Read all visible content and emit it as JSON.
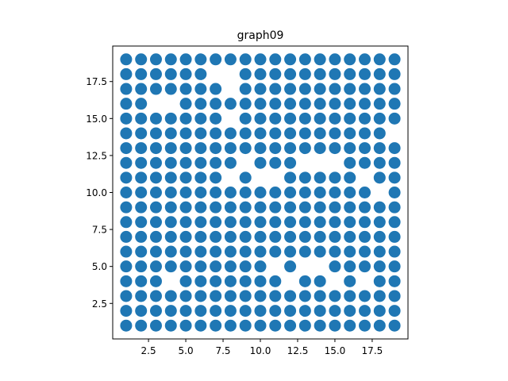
{
  "chart_data": {
    "type": "scatter",
    "title": "graph09",
    "xlabel": "",
    "ylabel": "",
    "xlim": [
      0.1,
      19.9
    ],
    "ylim": [
      0.1,
      19.9
    ],
    "xticks": [
      2.5,
      5.0,
      7.5,
      10.0,
      12.5,
      15.0,
      17.5
    ],
    "yticks": [
      2.5,
      5.0,
      7.5,
      10.0,
      12.5,
      15.0,
      17.5
    ],
    "xtick_labels": [
      "2.5",
      "5.0",
      "7.5",
      "10.0",
      "12.5",
      "15.0",
      "17.5"
    ],
    "ytick_labels": [
      "2.5",
      "5.0",
      "7.5",
      "10.0",
      "12.5",
      "15.0",
      "17.5"
    ],
    "grid": false,
    "marker_color": "#1f77b4",
    "grid_x_range": [
      1,
      19
    ],
    "grid_y_range": [
      1,
      19
    ],
    "missing_points": [
      [
        4,
        4
      ],
      [
        12,
        4
      ],
      [
        15,
        4
      ],
      [
        17,
        4
      ],
      [
        11,
        5
      ],
      [
        13,
        5
      ],
      [
        14,
        5
      ],
      [
        18,
        10
      ],
      [
        8,
        11
      ],
      [
        10,
        11
      ],
      [
        11,
        11
      ],
      [
        17,
        11
      ],
      [
        9,
        12
      ],
      [
        13,
        12
      ],
      [
        14,
        12
      ],
      [
        15,
        12
      ],
      [
        19,
        14
      ],
      [
        8,
        15
      ],
      [
        3,
        16
      ],
      [
        4,
        16
      ],
      [
        8,
        17
      ],
      [
        7,
        18
      ],
      [
        8,
        18
      ]
    ]
  }
}
